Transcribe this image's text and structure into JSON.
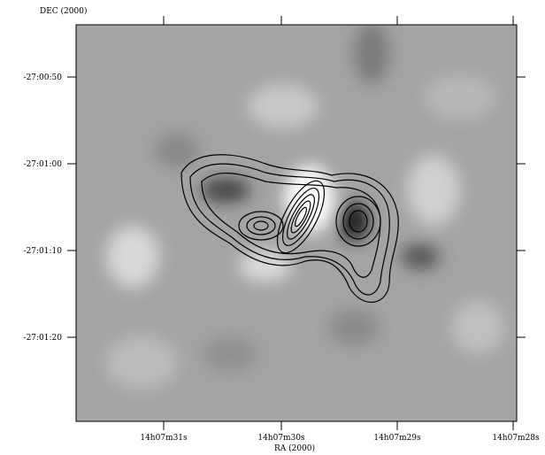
{
  "y_axis": {
    "label": "DEC (2000)",
    "ticks": [
      "-27:00:50",
      "-27:01:00",
      "-27:01:10",
      "-27:01:20"
    ]
  },
  "x_axis": {
    "label": "RA (2000)",
    "ticks": [
      "14h07m31s",
      "14h07m30s",
      "14h07m29s",
      "14h07m28s"
    ]
  }
}
